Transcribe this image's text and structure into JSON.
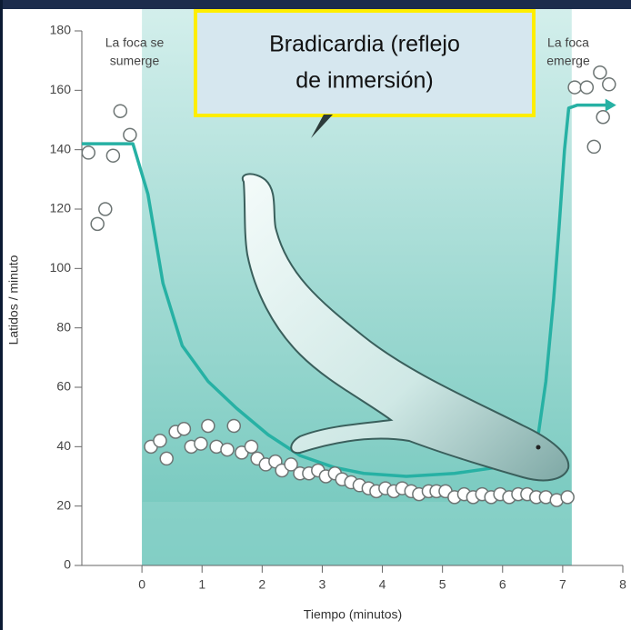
{
  "chart_data": {
    "type": "scatter",
    "xlabel": "Tiempo (minutos)",
    "ylabel": "Latidos / minuto",
    "xlim": [
      -1,
      8
    ],
    "ylim": [
      0,
      180
    ],
    "xticks": [
      0,
      1,
      2,
      3,
      4,
      5,
      6,
      7,
      8
    ],
    "yticks": [
      0,
      20,
      40,
      60,
      80,
      100,
      120,
      140,
      160,
      180
    ],
    "dive_span": [
      0,
      7.15
    ],
    "dive_color": "#8fd3cb",
    "series": [
      {
        "mode": "markers",
        "color": "#ffffff",
        "x": [
          -0.89,
          -0.48,
          -0.74,
          -0.61,
          -0.36,
          -0.2,
          0.15,
          0.3,
          0.41,
          0.56,
          0.7,
          0.82,
          0.98,
          1.1,
          1.24,
          1.42,
          1.53,
          1.66,
          1.82,
          1.92,
          2.06,
          2.22,
          2.33,
          2.48,
          2.63,
          2.78,
          2.93,
          3.06,
          3.21,
          3.33,
          3.48,
          3.62,
          3.77,
          3.9,
          4.05,
          4.19,
          4.33,
          4.48,
          4.61,
          4.77,
          4.9,
          5.05,
          5.2,
          5.36,
          5.51,
          5.66,
          5.81,
          5.96,
          6.11,
          6.26,
          6.41,
          6.56,
          6.72,
          6.9,
          7.08,
          7.2,
          7.4,
          7.62,
          7.77,
          7.67,
          7.52
        ],
        "values": [
          139,
          138,
          115,
          120,
          153,
          145,
          40,
          42,
          36,
          45,
          46,
          40,
          41,
          47,
          40,
          39,
          47,
          38,
          40,
          36,
          34,
          35,
          32,
          34,
          31,
          31,
          32,
          30,
          31,
          29,
          28,
          27,
          26,
          25,
          26,
          25,
          26,
          25,
          24,
          25,
          25,
          25,
          23,
          24,
          23,
          24,
          23,
          24,
          23,
          24,
          24,
          23,
          23,
          22,
          23,
          161,
          161,
          166,
          162,
          151,
          141
        ]
      },
      {
        "mode": "line",
        "color": "#27b1a4",
        "x": [
          -1,
          -0.15,
          0.1,
          0.35,
          0.67,
          1.1,
          1.57,
          2.1,
          2.63,
          3.2,
          3.69,
          4.4,
          5.2,
          5.9,
          6.41,
          6.6,
          6.72,
          6.85,
          6.94,
          7.03,
          7.1,
          7.24,
          7.77
        ],
        "values": [
          142,
          142,
          125,
          95,
          74,
          62,
          53,
          44,
          37,
          33,
          31,
          30,
          31,
          33,
          36,
          45,
          62,
          90,
          114,
          140,
          154,
          155,
          155
        ]
      }
    ],
    "annotations": [
      {
        "lines": [
          "La foca se",
          "sumerge"
        ]
      },
      {
        "lines": [
          "La foca",
          "emerge"
        ]
      }
    ],
    "callout": {
      "lines": [
        "Bradicardia (reflejo",
        "de inmersión)"
      ]
    }
  }
}
